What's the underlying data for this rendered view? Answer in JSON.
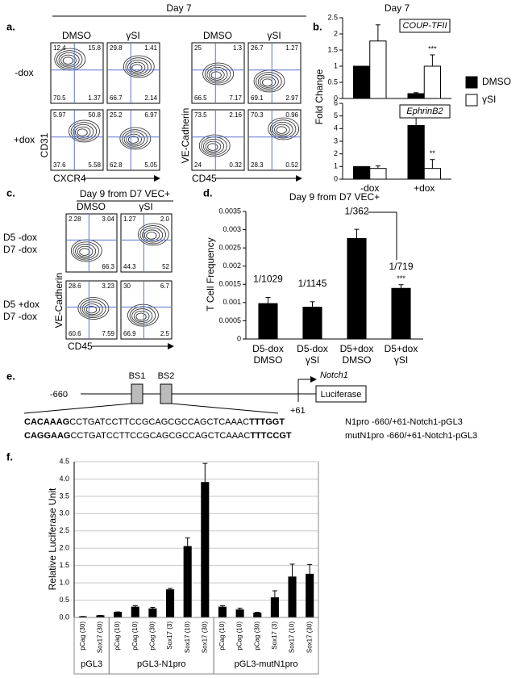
{
  "panel_labels": [
    "a.",
    "b.",
    "c.",
    "d.",
    "e.",
    "f."
  ],
  "panel_a": {
    "title": "Day 7",
    "columns": [
      "DMSO",
      "γSI",
      "DMSO",
      "γSI"
    ],
    "rows": [
      "-dox",
      "+dox"
    ],
    "left_axes": {
      "x": "CXCR4",
      "y": "CD31"
    },
    "right_axes": {
      "x": "CD45",
      "y": "VE-Cadherin"
    },
    "plots": [
      [
        "12.4",
        "15.8",
        "70.5",
        "1.37"
      ],
      [
        "29.8",
        "1.41",
        "66.7",
        "2.14"
      ],
      [
        "25",
        "1.3",
        "66.5",
        "7.17"
      ],
      [
        "26.7",
        "1.27",
        "69.1",
        "2.97"
      ],
      [
        "5.97",
        "50.8",
        "37.6",
        "5.58"
      ],
      [
        "25.2",
        "6.97",
        "62.8",
        "5.05"
      ],
      [
        "73.5",
        "2.16",
        "24",
        "0.32"
      ],
      [
        "70.3",
        "0.96",
        "28.3",
        "0.52"
      ]
    ]
  },
  "panel_c": {
    "title": "Day 9 from D7 VEC+",
    "columns": [
      "DMSO",
      "γSI"
    ],
    "rows": [
      [
        "D5 -dox",
        "D7 -dox"
      ],
      [
        "D5 +dox",
        "D7 -dox"
      ]
    ],
    "x_axis": "CD45",
    "y_axis": "VE-Cadherin",
    "plots": [
      [
        "2.28",
        "3.04",
        null,
        "66.3"
      ],
      [
        "1.27",
        "2.0",
        "44.3",
        "52"
      ],
      [
        "28.6",
        "3.23",
        "60.6",
        "7.59"
      ],
      [
        "30",
        "6.7",
        "66.9",
        "2.5"
      ]
    ]
  },
  "panel_e": {
    "start": "-660",
    "end": "+61",
    "sites": [
      "BS1",
      "BS2"
    ],
    "gene": "Notch1",
    "reporter": "Luciferase",
    "sequences": [
      {
        "parts": [
          "CACAAAG",
          "CCTGATCCTTCCGCAGCGCCAGCTCAAAC",
          "TTTGGT"
        ],
        "construct": "N1pro -660/+61-Notch1-pGL3"
      },
      {
        "parts": [
          "CAGGAAG",
          "CCTGATCCTTCCGCAGCGCCAGCTCAAAC",
          "TTTCCGT"
        ],
        "construct": "mutN1pro -660/+61-Notch1-pGL3"
      }
    ]
  },
  "chart_data": [
    {
      "type": "bar",
      "title": "Day 7",
      "subtitle": "COUP-TFII",
      "ylabel": "Fold Change",
      "legend": "right",
      "categories": [
        null,
        null
      ],
      "ylim": [
        0,
        2.5
      ],
      "yticks": [
        0,
        0.5,
        1,
        1.5,
        2,
        2.5
      ],
      "series": [
        {
          "name": "DMSO",
          "color": "#000000",
          "values": [
            1.0,
            0.15
          ],
          "errors": [
            null,
            0.03
          ]
        },
        {
          "name": "γSI",
          "color": "#ffffff",
          "values": [
            1.78,
            1.0
          ],
          "errors": [
            0.5,
            0.35
          ],
          "labels": [
            null,
            "***"
          ]
        }
      ]
    },
    {
      "type": "bar",
      "subtitle": "EphrinB2",
      "categories": [
        "-dox",
        "+dox"
      ],
      "ylim": [
        0,
        6
      ],
      "yticks": [
        0,
        1,
        2,
        3,
        4,
        5,
        6
      ],
      "series": [
        {
          "color": "#000000",
          "values": [
            1.0,
            4.25
          ],
          "errors": [
            null,
            0.6
          ]
        },
        {
          "color": "#ffffff",
          "values": [
            0.85,
            0.85
          ],
          "errors": [
            0.2,
            0.7
          ],
          "labels": [
            null,
            "**"
          ]
        }
      ]
    },
    {
      "type": "bar",
      "title": "Day 9 from D7 VEC+",
      "ylabel": "T Cell Frequency",
      "categories": [
        "D5-dox\nDMSO",
        "D5-dox\nγSI",
        "D5+dox\nDMSO",
        "D5+dox\nγSI"
      ],
      "ylim": [
        0,
        0.0035
      ],
      "yticks": [
        0,
        0.0005,
        0.001,
        0.0015,
        0.002,
        0.0025,
        0.003,
        0.0035
      ],
      "series": [
        {
          "color": "#000000",
          "values": [
            0.000972,
            0.000873,
            0.00276,
            0.00139
          ],
          "value_labels": [
            "1/1029",
            "1/1145",
            "1/362",
            "1/719"
          ],
          "errors": [
            0.00017,
            0.00015,
            0.00025,
            0.0001
          ],
          "labels": [
            null,
            null,
            null,
            "***"
          ]
        }
      ]
    },
    {
      "type": "bar",
      "ylabel": "Relative Luciferase Unit",
      "grid": true,
      "groups": [
        {
          "label": "pGL3",
          "categories": [
            "pCag (30)",
            "Sox17 (30)"
          ]
        },
        {
          "label": "pGL3-N1pro",
          "categories": [
            "pCag (10)",
            "pCag (10)",
            "pCag (30)",
            "Sox17 (3)",
            "Sox17 (10)",
            "Sox17 (30)"
          ]
        },
        {
          "label": "pGL3-mutN1pro",
          "categories": [
            "pCag (10)",
            "pCag (10)",
            "pCag (30)",
            "Sox17 (3)",
            "Sox17 (10)",
            "Sox17 (30)"
          ]
        }
      ],
      "ylim": [
        0,
        4.5
      ],
      "yticks": [
        {
          "value": 0,
          "label": "0.0"
        },
        0.5,
        {
          "value": 1,
          "label": "1.0"
        },
        1.5,
        {
          "value": 2,
          "label": "2.0"
        },
        2.5,
        {
          "value": 3,
          "label": "3.0"
        },
        3.5,
        {
          "value": 4,
          "label": "4.0"
        },
        4.5
      ],
      "series": [
        {
          "color": "#000000",
          "values": [
            0.02,
            0.05,
            0.15,
            0.3,
            0.25,
            0.8,
            2.05,
            3.9,
            0.3,
            0.22,
            0.13,
            0.57,
            1.17,
            1.25
          ],
          "errors": [
            0.01,
            0.01,
            0.01,
            0.04,
            0.04,
            0.04,
            0.25,
            0.55,
            0.04,
            0.05,
            0.02,
            0.2,
            0.37,
            0.28
          ]
        }
      ]
    }
  ]
}
